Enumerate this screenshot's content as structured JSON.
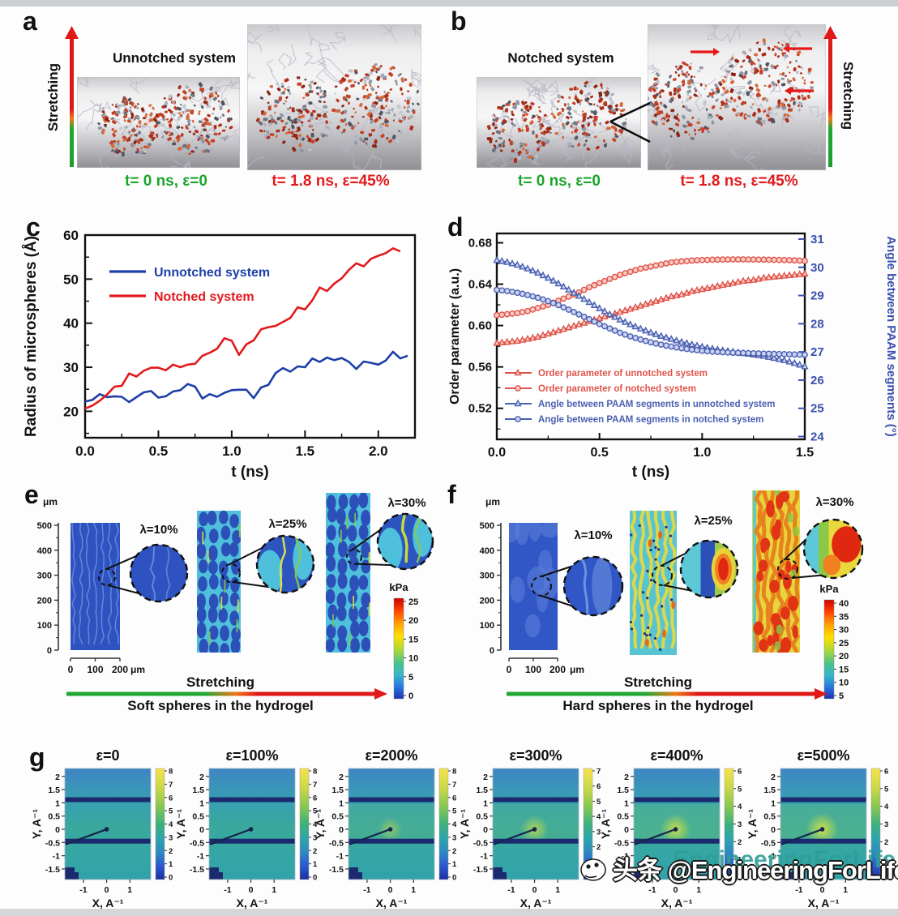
{
  "panels": {
    "a": {
      "label": "a",
      "title": "Unnotched system",
      "stretching": "Stretching",
      "caption_t0": "t= 0 ns, ε=0",
      "caption_t18": "t= 1.8 ns, ε=45%"
    },
    "b": {
      "label": "b",
      "title": "Notched system",
      "stretching": "Stretching",
      "caption_t0": "t= 0 ns, ε=0",
      "caption_t18": "t= 1.8 ns, ε=45%"
    },
    "c": {
      "label": "c"
    },
    "d": {
      "label": "d"
    },
    "e": {
      "label": "e",
      "y_axis_unit": "μm",
      "y_ticks": [
        "500",
        "400",
        "300",
        "200",
        "100",
        "0"
      ],
      "scale_ticks": [
        "0",
        "100",
        "200"
      ],
      "scale_unit": "μm",
      "lambdas": [
        "λ=10%",
        "λ=25%",
        "λ=30%"
      ],
      "colorbar_title": "kPa",
      "colorbar_ticks": [
        "25",
        "20",
        "15",
        "10",
        "5",
        "0"
      ],
      "stretching": "Stretching",
      "caption": "Soft spheres in the hydrogel"
    },
    "f": {
      "label": "f",
      "y_axis_unit": "μm",
      "y_ticks": [
        "500",
        "400",
        "300",
        "200",
        "100",
        "0"
      ],
      "scale_ticks": [
        "0",
        "100",
        "200"
      ],
      "scale_unit": "μm",
      "lambdas": [
        "λ=10%",
        "λ=25%",
        "λ=30%"
      ],
      "colorbar_title": "kPa",
      "colorbar_ticks": [
        "40",
        "35",
        "30",
        "25",
        "20",
        "15",
        "10",
        "5"
      ],
      "stretching": "Stretching",
      "caption": "Hard spheres in the hydrogel"
    },
    "g": {
      "label": "g",
      "x_label": "X, A⁻¹",
      "y_label": "Y, A⁻¹",
      "y_ticks": [
        "2",
        "1.5",
        "1",
        "0.5",
        "0",
        "-0.5",
        "-1",
        "-1.5"
      ],
      "x_ticks": [
        "-1",
        "0",
        "1"
      ],
      "subpanels": [
        {
          "title": "ε=0",
          "colorbar_ticks": [
            "8",
            "7",
            "6",
            "5",
            "4",
            "3",
            "2",
            "1",
            "0"
          ]
        },
        {
          "title": "ε=100%",
          "colorbar_ticks": [
            "8",
            "7",
            "6",
            "5",
            "4",
            "3",
            "2",
            "1",
            "0"
          ]
        },
        {
          "title": "ε=200%",
          "colorbar_ticks": [
            "8",
            "7",
            "6",
            "5",
            "4",
            "3",
            "2",
            "1",
            "0"
          ]
        },
        {
          "title": "ε=300%",
          "colorbar_ticks": [
            "7",
            "6",
            "5",
            "4",
            "3",
            "2",
            "1",
            "0"
          ]
        },
        {
          "title": "ε=400%",
          "colorbar_ticks": [
            "6",
            "5",
            "4",
            "3",
            "2",
            "1",
            "0"
          ]
        },
        {
          "title": "ε=500%",
          "colorbar_ticks": [
            "6",
            "5",
            "4",
            "3",
            "2",
            "1",
            "0"
          ]
        }
      ]
    }
  },
  "watermark": {
    "text": "头条 @EngineeringForLife",
    "ghost_text": "EngineeringForLife"
  },
  "colors": {
    "green_arrow": "#22a832",
    "red_arrow": "#e01818",
    "c_blue": "#1d3fa8",
    "c_red": "#e3191c",
    "d_red": "#e0534a",
    "d_blue": "#4a5fb0",
    "navy_band": "#1b2a6e"
  },
  "chart_data": [
    {
      "type": "line",
      "panel": "c",
      "xlabel": "t (ns)",
      "ylabel": "Radius of microspheres (Å)",
      "xlim": [
        0,
        2.25
      ],
      "ylim": [
        14,
        60
      ],
      "xticks": [
        0,
        0.5,
        1,
        1.5,
        2
      ],
      "xtick_labels": [
        "0.0",
        "0.5",
        "1.0",
        "1.5",
        "2.0"
      ],
      "yticks": [
        20,
        30,
        40,
        50,
        60
      ],
      "ytick_labels": [
        "20",
        "30",
        "40",
        "50",
        "60"
      ],
      "legend_position": "top-left",
      "grid": false,
      "series": [
        {
          "name": "Unnotched system",
          "color": "#1d3fa8",
          "x": [
            0,
            0.05,
            0.1,
            0.15,
            0.2,
            0.25,
            0.3,
            0.35,
            0.4,
            0.45,
            0.5,
            0.55,
            0.6,
            0.65,
            0.7,
            0.75,
            0.8,
            0.85,
            0.9,
            0.95,
            1.0,
            1.05,
            1.1,
            1.15,
            1.2,
            1.25,
            1.3,
            1.35,
            1.4,
            1.45,
            1.5,
            1.55,
            1.6,
            1.65,
            1.7,
            1.75,
            1.8,
            1.85,
            1.9,
            1.95,
            2.0,
            2.05,
            2.1,
            2.15,
            2.2
          ],
          "y": [
            22.2,
            22.6,
            23.9,
            23.2,
            23.4,
            23.3,
            22.1,
            23.2,
            24.3,
            24.6,
            23.1,
            23.4,
            24.5,
            24.8,
            26.2,
            25.6,
            22.9,
            23.9,
            23.3,
            24.2,
            24.8,
            24.9,
            24.9,
            23.0,
            25.4,
            26.0,
            28.7,
            29.8,
            29.0,
            30.2,
            30.0,
            32.0,
            31.2,
            32.2,
            31.6,
            32.1,
            31.2,
            29.6,
            31.3,
            31.0,
            30.6,
            31.5,
            33.5,
            32.0,
            32.6
          ]
        },
        {
          "name": "Notched system",
          "color": "#e3191c",
          "x": [
            0,
            0.05,
            0.1,
            0.15,
            0.2,
            0.25,
            0.3,
            0.35,
            0.4,
            0.45,
            0.5,
            0.55,
            0.6,
            0.65,
            0.7,
            0.75,
            0.8,
            0.85,
            0.9,
            0.95,
            1.0,
            1.05,
            1.1,
            1.15,
            1.2,
            1.25,
            1.3,
            1.35,
            1.4,
            1.45,
            1.5,
            1.55,
            1.6,
            1.65,
            1.7,
            1.75,
            1.8,
            1.85,
            1.9,
            1.95,
            2.0,
            2.05,
            2.1,
            2.15
          ],
          "y": [
            20.6,
            21.3,
            22.4,
            23.8,
            25.6,
            25.8,
            28.6,
            27.9,
            29.2,
            29.9,
            29.9,
            29.3,
            30.6,
            30.0,
            30.6,
            30.8,
            32.6,
            33.3,
            34.2,
            36.6,
            36.0,
            32.8,
            35.2,
            36.1,
            38.6,
            39.1,
            39.4,
            40.3,
            41.2,
            43.6,
            43.1,
            45.2,
            48.1,
            47.3,
            49.0,
            50.2,
            52.1,
            53.6,
            52.9,
            54.6,
            55.3,
            55.9,
            57.0,
            56.3
          ]
        }
      ]
    },
    {
      "type": "line",
      "panel": "d",
      "xlabel": "t (ns)",
      "ylabel_left": "Order parameter (a.u.)",
      "ylabel_right": "Angle between PAAM segments (°)",
      "xlim": [
        0,
        1.5
      ],
      "ylim_left": [
        0.49,
        0.689
      ],
      "ylim_right": [
        23.9,
        31.2
      ],
      "xticks": [
        0,
        0.5,
        1,
        1.5
      ],
      "xtick_labels": [
        "0.0",
        "0.5",
        "1.0",
        "1.5"
      ],
      "yticks_left": [
        0.52,
        0.56,
        0.6,
        0.64,
        0.68
      ],
      "ytick_left_labels": [
        "0.52",
        "0.56",
        "0.60",
        "0.64",
        "0.68"
      ],
      "yticks_right": [
        24,
        25,
        26,
        27,
        28,
        29,
        30,
        31
      ],
      "ytick_right_labels": [
        "24",
        "25",
        "26",
        "27",
        "28",
        "29",
        "30",
        "31"
      ],
      "x_shared": [
        0,
        0.05,
        0.1,
        0.15,
        0.2,
        0.25,
        0.3,
        0.35,
        0.4,
        0.45,
        0.5,
        0.55,
        0.6,
        0.65,
        0.7,
        0.75,
        0.8,
        0.85,
        0.9,
        0.95,
        1.0,
        1.05,
        1.1,
        1.15,
        1.2,
        1.25,
        1.3,
        1.35,
        1.4,
        1.45,
        1.5
      ],
      "series": [
        {
          "name": "Order parameter of unnotched system",
          "axis": "left",
          "marker": "triangle",
          "color": "#e0534a",
          "y": [
            0.583,
            0.584,
            0.585,
            0.587,
            0.589,
            0.592,
            0.595,
            0.598,
            0.601,
            0.604,
            0.607,
            0.61,
            0.613,
            0.616,
            0.619,
            0.622,
            0.625,
            0.628,
            0.63,
            0.633,
            0.635,
            0.637,
            0.639,
            0.641,
            0.643,
            0.644,
            0.646,
            0.647,
            0.648,
            0.649,
            0.65
          ]
        },
        {
          "name": "Order parameter of notched system",
          "axis": "left",
          "marker": "circle",
          "color": "#e0534a",
          "y": [
            0.61,
            0.611,
            0.612,
            0.614,
            0.617,
            0.62,
            0.624,
            0.628,
            0.632,
            0.637,
            0.641,
            0.645,
            0.649,
            0.652,
            0.655,
            0.657,
            0.659,
            0.661,
            0.662,
            0.6628,
            0.6633,
            0.6636,
            0.6638,
            0.6639,
            0.6639,
            0.6638,
            0.6637,
            0.6635,
            0.6633,
            0.663,
            0.6625
          ]
        },
        {
          "name": "Angle between PAAM segments in unnotched system",
          "axis": "right",
          "marker": "triangle",
          "color": "#4a5fb0",
          "y": [
            30.25,
            30.18,
            30.08,
            29.95,
            29.8,
            29.62,
            29.42,
            29.2,
            28.98,
            28.76,
            28.54,
            28.33,
            28.14,
            27.97,
            27.82,
            27.68,
            27.56,
            27.45,
            27.35,
            27.26,
            27.18,
            27.11,
            27.05,
            27.0,
            26.95,
            26.9,
            26.85,
            26.78,
            26.7,
            26.6,
            26.48
          ]
        },
        {
          "name": "Angle between PAAM segments in notched system",
          "axis": "right",
          "marker": "circle",
          "color": "#4a5fb0",
          "y": [
            29.2,
            29.16,
            29.1,
            29.02,
            28.92,
            28.8,
            28.66,
            28.5,
            28.33,
            28.16,
            27.99,
            27.83,
            27.68,
            27.55,
            27.44,
            27.34,
            27.26,
            27.19,
            27.13,
            27.08,
            27.04,
            27.01,
            26.99,
            26.97,
            26.96,
            26.95,
            26.94,
            26.93,
            26.92,
            26.91,
            26.9
          ]
        }
      ]
    }
  ]
}
